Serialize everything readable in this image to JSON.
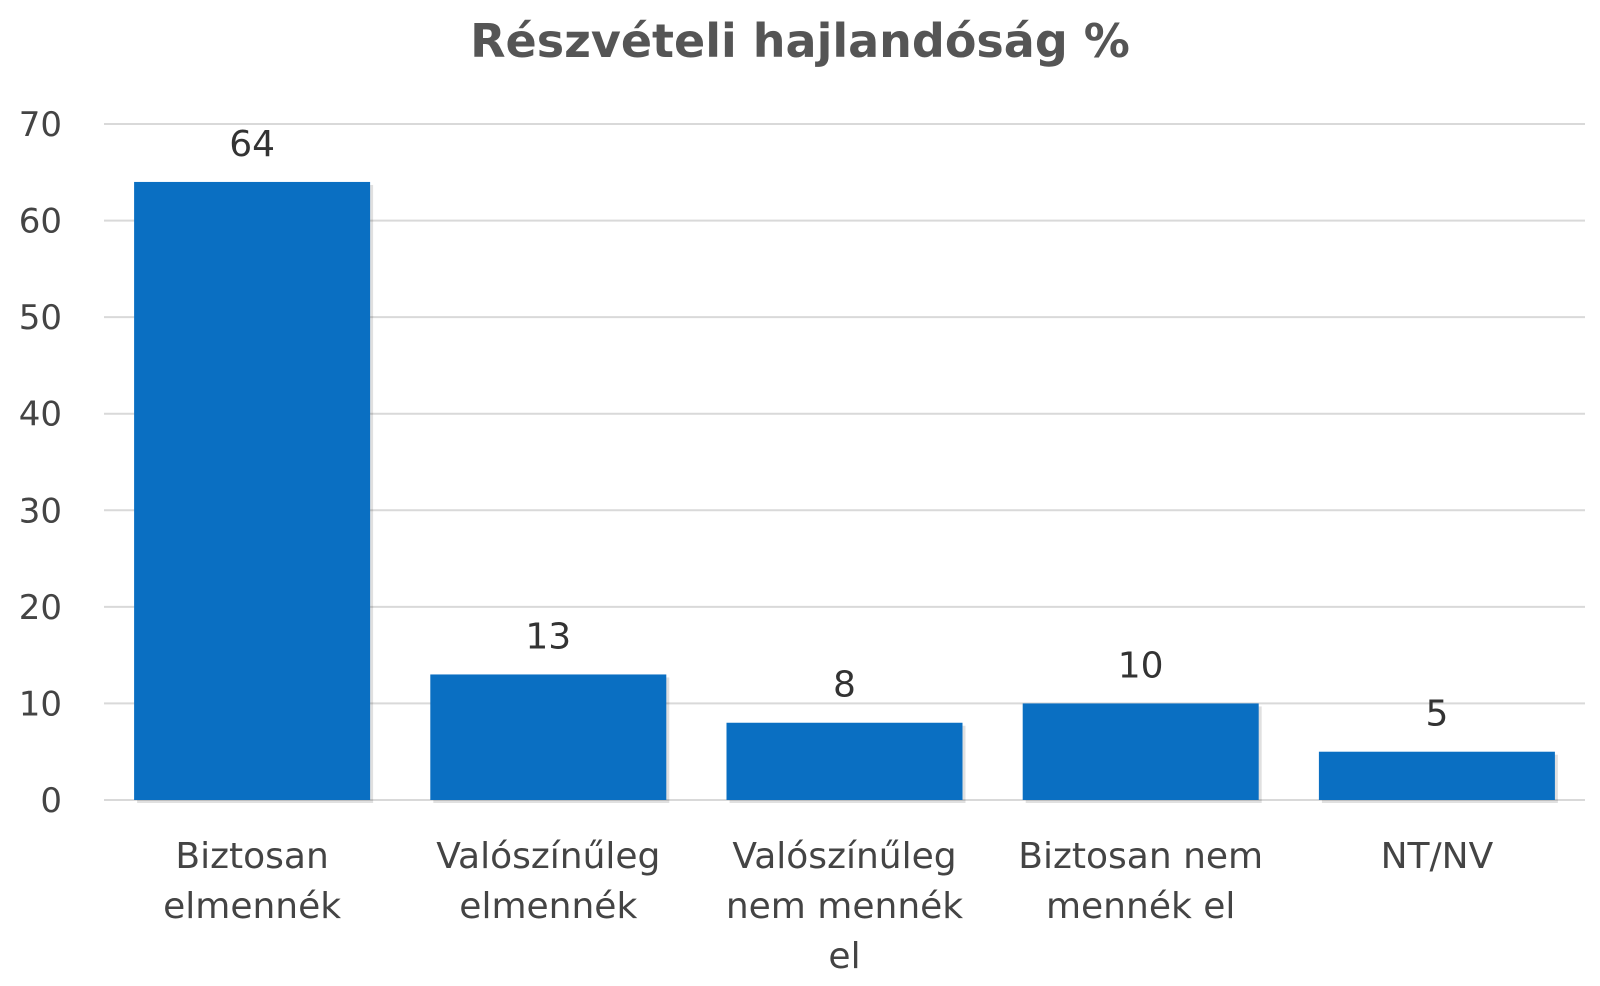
{
  "chart_data": {
    "type": "bar",
    "title": "Részvételi hajlandóság %",
    "categories": [
      [
        "Biztosan",
        "elmennék"
      ],
      [
        "Valószínűleg",
        "elmennék"
      ],
      [
        "Valószínűleg",
        "nem mennék",
        "el"
      ],
      [
        "Biztosan nem",
        "mennék el"
      ],
      [
        "NT/NV"
      ]
    ],
    "values": [
      64,
      13,
      8,
      10,
      5
    ],
    "data_labels": [
      "64",
      "13",
      "8",
      "10",
      "5"
    ],
    "ylim": [
      0,
      70
    ],
    "yticks": [
      0,
      10,
      20,
      30,
      40,
      50,
      60,
      70
    ],
    "grid": true,
    "bar_color": "#0a6fc2",
    "grid_color": "#d9d9d9"
  }
}
